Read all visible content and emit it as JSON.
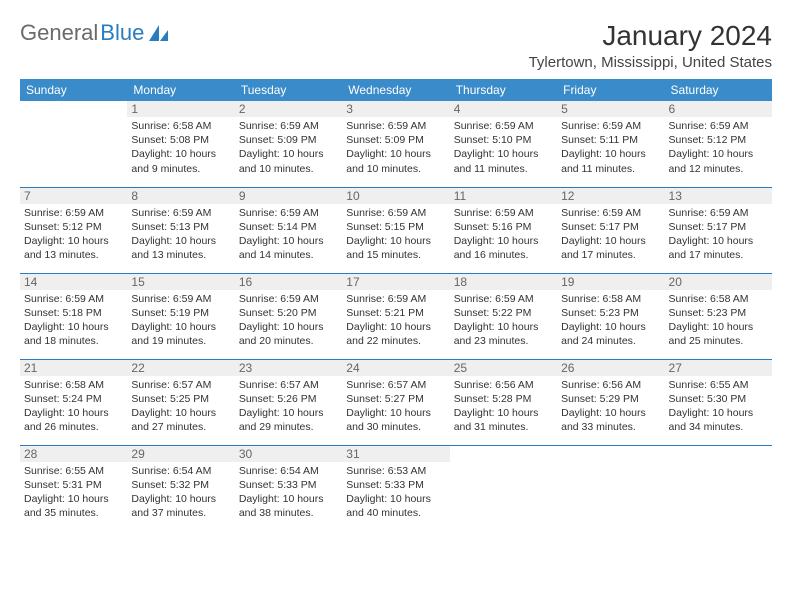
{
  "brand": {
    "name_part1": "General",
    "name_part2": "Blue",
    "accent_color": "#2b7bbf"
  },
  "title": "January 2024",
  "location": "Tylertown, Mississippi, United States",
  "weekdays": [
    "Sunday",
    "Monday",
    "Tuesday",
    "Wednesday",
    "Thursday",
    "Friday",
    "Saturday"
  ],
  "colors": {
    "header_bg": "#3a8bc9",
    "header_text": "#ffffff",
    "border": "#2b7bbf",
    "daynum_bg": "#efefef",
    "daynum_text": "#666666",
    "body_text": "#333333"
  },
  "weeks": [
    [
      null,
      {
        "n": "1",
        "sr": "Sunrise: 6:58 AM",
        "ss": "Sunset: 5:08 PM",
        "d1": "Daylight: 10 hours",
        "d2": "and 9 minutes."
      },
      {
        "n": "2",
        "sr": "Sunrise: 6:59 AM",
        "ss": "Sunset: 5:09 PM",
        "d1": "Daylight: 10 hours",
        "d2": "and 10 minutes."
      },
      {
        "n": "3",
        "sr": "Sunrise: 6:59 AM",
        "ss": "Sunset: 5:09 PM",
        "d1": "Daylight: 10 hours",
        "d2": "and 10 minutes."
      },
      {
        "n": "4",
        "sr": "Sunrise: 6:59 AM",
        "ss": "Sunset: 5:10 PM",
        "d1": "Daylight: 10 hours",
        "d2": "and 11 minutes."
      },
      {
        "n": "5",
        "sr": "Sunrise: 6:59 AM",
        "ss": "Sunset: 5:11 PM",
        "d1": "Daylight: 10 hours",
        "d2": "and 11 minutes."
      },
      {
        "n": "6",
        "sr": "Sunrise: 6:59 AM",
        "ss": "Sunset: 5:12 PM",
        "d1": "Daylight: 10 hours",
        "d2": "and 12 minutes."
      }
    ],
    [
      {
        "n": "7",
        "sr": "Sunrise: 6:59 AM",
        "ss": "Sunset: 5:12 PM",
        "d1": "Daylight: 10 hours",
        "d2": "and 13 minutes."
      },
      {
        "n": "8",
        "sr": "Sunrise: 6:59 AM",
        "ss": "Sunset: 5:13 PM",
        "d1": "Daylight: 10 hours",
        "d2": "and 13 minutes."
      },
      {
        "n": "9",
        "sr": "Sunrise: 6:59 AM",
        "ss": "Sunset: 5:14 PM",
        "d1": "Daylight: 10 hours",
        "d2": "and 14 minutes."
      },
      {
        "n": "10",
        "sr": "Sunrise: 6:59 AM",
        "ss": "Sunset: 5:15 PM",
        "d1": "Daylight: 10 hours",
        "d2": "and 15 minutes."
      },
      {
        "n": "11",
        "sr": "Sunrise: 6:59 AM",
        "ss": "Sunset: 5:16 PM",
        "d1": "Daylight: 10 hours",
        "d2": "and 16 minutes."
      },
      {
        "n": "12",
        "sr": "Sunrise: 6:59 AM",
        "ss": "Sunset: 5:17 PM",
        "d1": "Daylight: 10 hours",
        "d2": "and 17 minutes."
      },
      {
        "n": "13",
        "sr": "Sunrise: 6:59 AM",
        "ss": "Sunset: 5:17 PM",
        "d1": "Daylight: 10 hours",
        "d2": "and 17 minutes."
      }
    ],
    [
      {
        "n": "14",
        "sr": "Sunrise: 6:59 AM",
        "ss": "Sunset: 5:18 PM",
        "d1": "Daylight: 10 hours",
        "d2": "and 18 minutes."
      },
      {
        "n": "15",
        "sr": "Sunrise: 6:59 AM",
        "ss": "Sunset: 5:19 PM",
        "d1": "Daylight: 10 hours",
        "d2": "and 19 minutes."
      },
      {
        "n": "16",
        "sr": "Sunrise: 6:59 AM",
        "ss": "Sunset: 5:20 PM",
        "d1": "Daylight: 10 hours",
        "d2": "and 20 minutes."
      },
      {
        "n": "17",
        "sr": "Sunrise: 6:59 AM",
        "ss": "Sunset: 5:21 PM",
        "d1": "Daylight: 10 hours",
        "d2": "and 22 minutes."
      },
      {
        "n": "18",
        "sr": "Sunrise: 6:59 AM",
        "ss": "Sunset: 5:22 PM",
        "d1": "Daylight: 10 hours",
        "d2": "and 23 minutes."
      },
      {
        "n": "19",
        "sr": "Sunrise: 6:58 AM",
        "ss": "Sunset: 5:23 PM",
        "d1": "Daylight: 10 hours",
        "d2": "and 24 minutes."
      },
      {
        "n": "20",
        "sr": "Sunrise: 6:58 AM",
        "ss": "Sunset: 5:23 PM",
        "d1": "Daylight: 10 hours",
        "d2": "and 25 minutes."
      }
    ],
    [
      {
        "n": "21",
        "sr": "Sunrise: 6:58 AM",
        "ss": "Sunset: 5:24 PM",
        "d1": "Daylight: 10 hours",
        "d2": "and 26 minutes."
      },
      {
        "n": "22",
        "sr": "Sunrise: 6:57 AM",
        "ss": "Sunset: 5:25 PM",
        "d1": "Daylight: 10 hours",
        "d2": "and 27 minutes."
      },
      {
        "n": "23",
        "sr": "Sunrise: 6:57 AM",
        "ss": "Sunset: 5:26 PM",
        "d1": "Daylight: 10 hours",
        "d2": "and 29 minutes."
      },
      {
        "n": "24",
        "sr": "Sunrise: 6:57 AM",
        "ss": "Sunset: 5:27 PM",
        "d1": "Daylight: 10 hours",
        "d2": "and 30 minutes."
      },
      {
        "n": "25",
        "sr": "Sunrise: 6:56 AM",
        "ss": "Sunset: 5:28 PM",
        "d1": "Daylight: 10 hours",
        "d2": "and 31 minutes."
      },
      {
        "n": "26",
        "sr": "Sunrise: 6:56 AM",
        "ss": "Sunset: 5:29 PM",
        "d1": "Daylight: 10 hours",
        "d2": "and 33 minutes."
      },
      {
        "n": "27",
        "sr": "Sunrise: 6:55 AM",
        "ss": "Sunset: 5:30 PM",
        "d1": "Daylight: 10 hours",
        "d2": "and 34 minutes."
      }
    ],
    [
      {
        "n": "28",
        "sr": "Sunrise: 6:55 AM",
        "ss": "Sunset: 5:31 PM",
        "d1": "Daylight: 10 hours",
        "d2": "and 35 minutes."
      },
      {
        "n": "29",
        "sr": "Sunrise: 6:54 AM",
        "ss": "Sunset: 5:32 PM",
        "d1": "Daylight: 10 hours",
        "d2": "and 37 minutes."
      },
      {
        "n": "30",
        "sr": "Sunrise: 6:54 AM",
        "ss": "Sunset: 5:33 PM",
        "d1": "Daylight: 10 hours",
        "d2": "and 38 minutes."
      },
      {
        "n": "31",
        "sr": "Sunrise: 6:53 AM",
        "ss": "Sunset: 5:33 PM",
        "d1": "Daylight: 10 hours",
        "d2": "and 40 minutes."
      },
      null,
      null,
      null
    ]
  ]
}
